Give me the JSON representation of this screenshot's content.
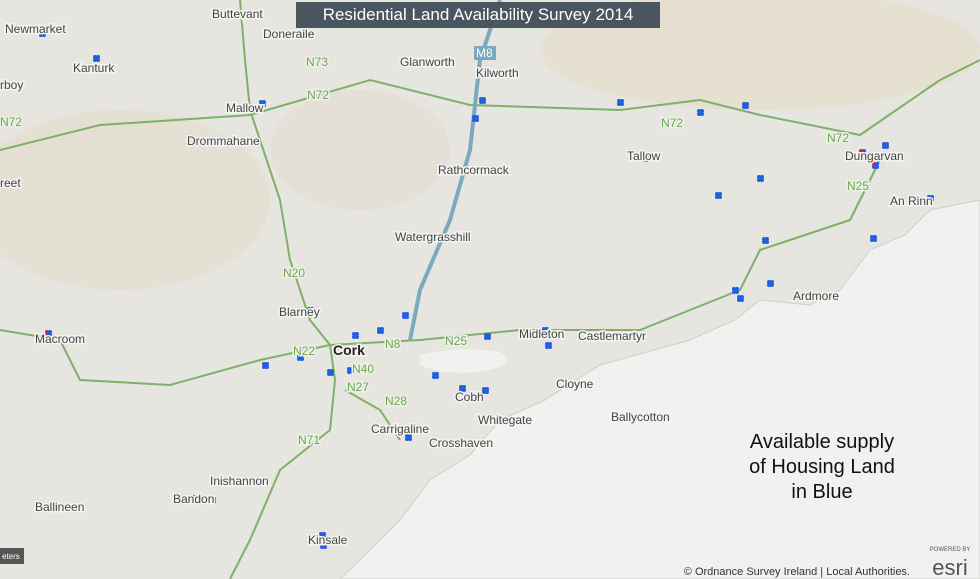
{
  "title": "Residential Land Availability Survey 2014",
  "places": [
    "Buttevant",
    "Newmarket",
    "Doneraile",
    "Glanworth",
    "Kilworth",
    "Kanturk",
    "rboy",
    "Mallow",
    "Drommahane",
    "Rathcormack",
    "Tallow",
    "Dungarvan",
    "reet",
    "An Rinn",
    "Watergrasshill",
    "Blarney",
    "Ardmore",
    "Midleton",
    "Castlemartyr",
    "Macroom",
    "Cork",
    "Cloyne",
    "Cobh",
    "Whitegate",
    "Ballycotton",
    "Carrigaline",
    "Crosshaven",
    "Inishannon",
    "Bandon",
    "Ballineen",
    "Kinsale"
  ],
  "roads": [
    "M8",
    "N73",
    "N72",
    "N72",
    "N72",
    "N72",
    "N25",
    "N20",
    "N22",
    "N8",
    "N25",
    "N40",
    "N27",
    "N28",
    "N71"
  ],
  "annotation": [
    "Available supply",
    "of Housing Land",
    "in Blue"
  ],
  "attribution": "© Ordnance Survey Ireland | Local Authorities.",
  "logo": {
    "tagline": "POWERED BY",
    "name": "esri"
  },
  "scale_label": "eters"
}
